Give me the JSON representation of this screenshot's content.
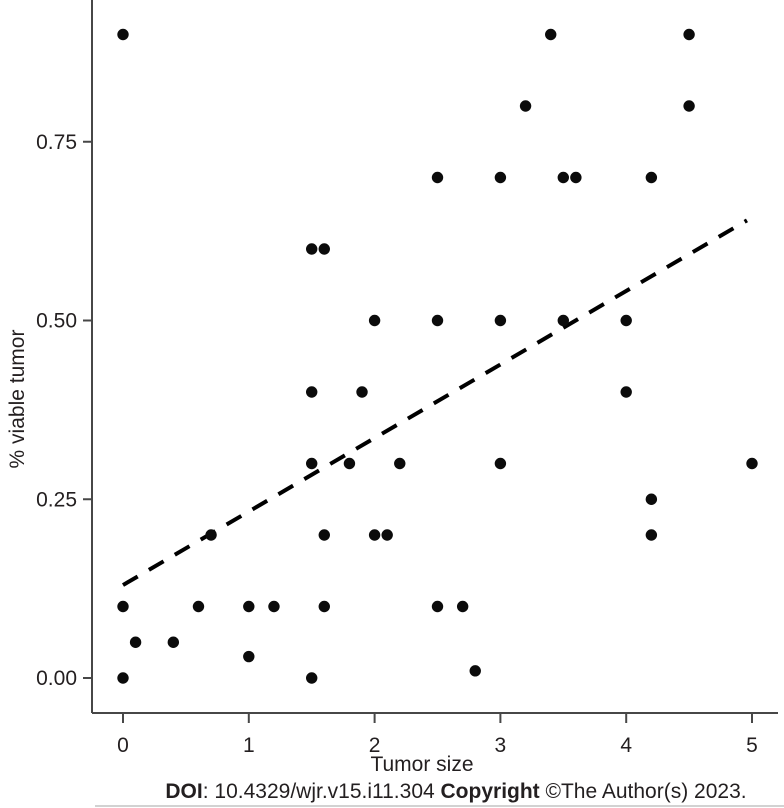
{
  "chart_data": {
    "type": "scatter",
    "title": "",
    "xlabel": "Tumor size",
    "ylabel": "% viable tumor",
    "xlim": [
      -0.25,
      5.2
    ],
    "ylim": [
      0,
      0.95
    ],
    "grid": false,
    "legend": "none",
    "x_ticks": [
      0,
      1,
      2,
      3,
      4,
      5
    ],
    "x_tick_labels": [
      "0",
      "1",
      "2",
      "3",
      "4",
      "5"
    ],
    "y_ticks": [
      0.0,
      0.25,
      0.5,
      0.75
    ],
    "y_tick_labels": [
      "0.00",
      "0.25",
      "0.50",
      "0.75"
    ],
    "points": [
      [
        0,
        0.9
      ],
      [
        3.4,
        0.9
      ],
      [
        4.5,
        0.9
      ],
      [
        3.2,
        0.8
      ],
      [
        4.5,
        0.8
      ],
      [
        2.5,
        0.7
      ],
      [
        3.0,
        0.7
      ],
      [
        3.5,
        0.7
      ],
      [
        3.6,
        0.7
      ],
      [
        4.2,
        0.7
      ],
      [
        1.5,
        0.6
      ],
      [
        1.6,
        0.6
      ],
      [
        2.0,
        0.5
      ],
      [
        2.5,
        0.5
      ],
      [
        3.0,
        0.5
      ],
      [
        3.5,
        0.5
      ],
      [
        4.0,
        0.5
      ],
      [
        1.5,
        0.4
      ],
      [
        1.9,
        0.4
      ],
      [
        4.0,
        0.4
      ],
      [
        1.5,
        0.3
      ],
      [
        1.8,
        0.3
      ],
      [
        2.2,
        0.3
      ],
      [
        3.0,
        0.3
      ],
      [
        5.0,
        0.3
      ],
      [
        4.2,
        0.25
      ],
      [
        0.7,
        0.2
      ],
      [
        1.6,
        0.2
      ],
      [
        2.0,
        0.2
      ],
      [
        2.1,
        0.2
      ],
      [
        4.2,
        0.2
      ],
      [
        0,
        0.1
      ],
      [
        0.6,
        0.1
      ],
      [
        1.0,
        0.1
      ],
      [
        1.2,
        0.1
      ],
      [
        1.6,
        0.1
      ],
      [
        2.5,
        0.1
      ],
      [
        2.7,
        0.1
      ],
      [
        0.1,
        0.05
      ],
      [
        0.4,
        0.05
      ],
      [
        1.0,
        0.03
      ],
      [
        2.8,
        0.01
      ],
      [
        0,
        0.0
      ],
      [
        1.5,
        0.0
      ]
    ],
    "trend_line": {
      "style": "dashed",
      "x_start": 0.0,
      "y_start": 0.13,
      "x_end": 4.96,
      "y_end": 0.64
    }
  },
  "footer": {
    "doi_label": "DOI",
    "doi_value": ": 10.4329/wjr.v15.i11.304 ",
    "copyright_label": "Copyright",
    "copyright_value": " ©The Author(s) 2023."
  },
  "colors": {
    "background": "#ffffff",
    "point": "#0b0b0b",
    "axis": "#474747",
    "text": "#231f20",
    "trend": "#000000"
  }
}
